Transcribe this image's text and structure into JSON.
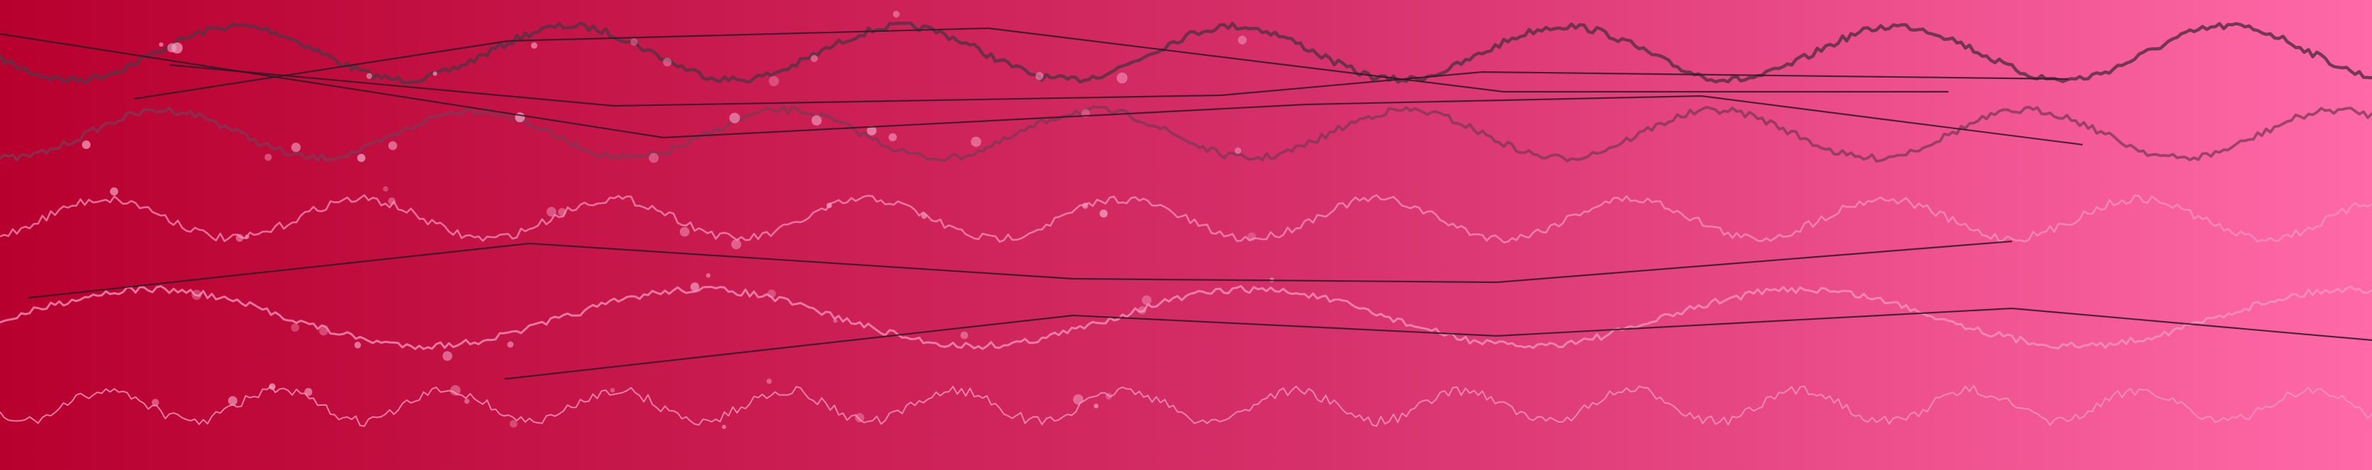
{
  "colors": {
    "gradient_start": "#b8002e",
    "gradient_mid": "#d6306a",
    "gradient_end": "#ff69a8",
    "wave_dark": "#5a3145",
    "wave_mid": "#7a3a55",
    "wave_light": "#f39ac0",
    "line_dark": "#2a1a24",
    "dot": "#f4a3c4"
  }
}
